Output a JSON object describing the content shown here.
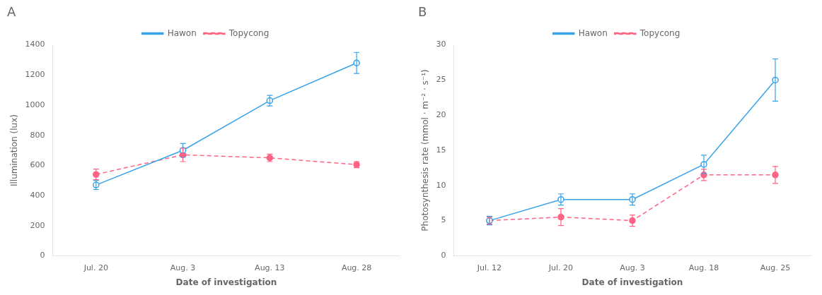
{
  "chart_data": [
    {
      "type": "line",
      "title": "A",
      "categories": [
        "Jul. 20",
        "Aug. 3",
        "Aug. 13",
        "Aug. 28"
      ],
      "series": [
        {
          "name": "Hawon",
          "color": "#36a2eb",
          "values": [
            470,
            700,
            1030,
            1280
          ],
          "yerr": [
            30,
            45,
            35,
            70
          ],
          "line_style": "solid",
          "marker": "circle"
        },
        {
          "name": "Topycong",
          "color": "#ff6384",
          "values": [
            540,
            670,
            650,
            605
          ],
          "yerr": [
            35,
            45,
            25,
            20
          ],
          "line_style": "dashed",
          "marker": "circle"
        }
      ],
      "xlabel": "Date of investigation",
      "ylabel": "Illumination (lux)",
      "ylim": [
        0,
        1400
      ],
      "yticks": [
        0,
        200,
        400,
        600,
        800,
        1000,
        1200,
        1400
      ],
      "grid": false,
      "legend": "top"
    },
    {
      "type": "line",
      "title": "B",
      "categories": [
        "Jul. 12",
        "Jul. 20",
        "Aug. 3",
        "Aug. 18",
        "Aug. 25"
      ],
      "series": [
        {
          "name": "Hawon",
          "color": "#36a2eb",
          "values": [
            5.0,
            8.0,
            8.0,
            13.0,
            25.0
          ],
          "yerr": [
            0.6,
            0.8,
            0.8,
            1.3,
            3.0
          ],
          "line_style": "solid",
          "marker": "circle"
        },
        {
          "name": "Topycong",
          "color": "#ff6384",
          "values": [
            5.0,
            5.5,
            5.0,
            11.5,
            11.5
          ],
          "yerr": [
            0.5,
            1.2,
            0.8,
            0.8,
            1.2
          ],
          "line_style": "dashed",
          "marker": "circle"
        }
      ],
      "xlabel": "Date of investigation",
      "ylabel": "Photosynthesis rate (mmol · m⁻² · s⁻¹)",
      "ylim": [
        0,
        30
      ],
      "yticks": [
        0,
        5,
        10,
        15,
        20,
        25,
        30
      ],
      "grid": false,
      "legend": "top"
    }
  ]
}
